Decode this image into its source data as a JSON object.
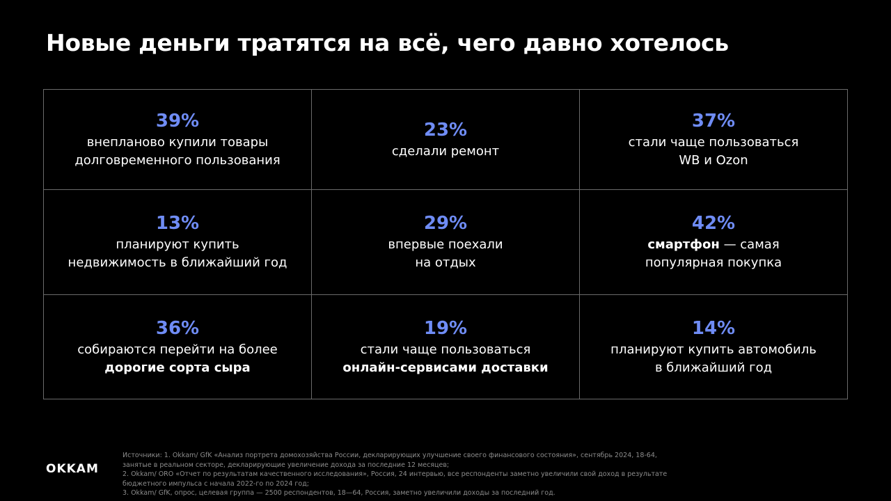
{
  "title": "Новые деньги тратятся на всё, чего давно хотелось",
  "accent_color": "#6f8cf5",
  "stats": [
    {
      "value": "39%",
      "line1": "внепланово купили товары",
      "line2": "долговременного пользования"
    },
    {
      "value": "23%",
      "line1": "сделали ремонт",
      "line2": ""
    },
    {
      "value": "37%",
      "line1": "стали чаще пользоваться",
      "line2": "WB и Ozon"
    },
    {
      "value": "13%",
      "line1": "планируют купить",
      "line2": "недвижимость в ближайший год"
    },
    {
      "value": "29%",
      "line1": "впервые поехали",
      "line2": "на отдых"
    },
    {
      "value": "42%",
      "bold1": "смартфон",
      "line1": " — самая",
      "line2": "популярная покупка"
    },
    {
      "value": "36%",
      "line1": "собираются перейти на более",
      "bold2": "дорогие сорта сыра"
    },
    {
      "value": "19%",
      "line1": "стали чаще пользоваться",
      "bold2": "онлайн-сервисами доставки"
    },
    {
      "value": "14%",
      "line1": "планируют купить автомобиль",
      "line2": "в ближайший год"
    }
  ],
  "logo": "OKKAM",
  "sources": [
    "Источники: 1. Okkam/ GfK «Анализ портрета домохозяйства России, декларирующих улучшение своего финансового состояния», сентябрь 2024, 18-64,",
    "занятые в реальном секторе, декларирующие  увеличение дохода за последние 12 месяцев;",
    "2. Okkam/ ORO «Отчет по результатам качественного исследования», Россия, 24 интервью, все респонденты заметно увеличили свой доход в результате",
    "бюджетного импульса с начала 2022-го по 2024 год;",
    "3. Okkam/ GfK, опрос, целевая группа — 2500 респондентов, 18—64, Россия, заметно увеличили доходы за последний год."
  ]
}
